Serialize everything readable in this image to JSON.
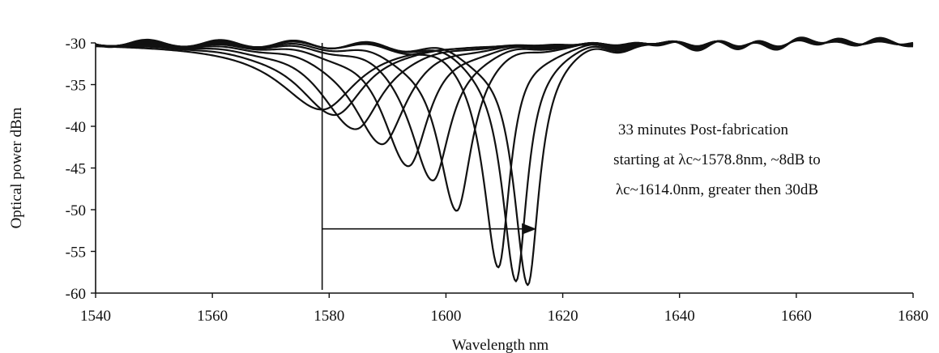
{
  "chart_data": {
    "type": "line",
    "title": "",
    "xlabel": "Wavelength nm",
    "ylabel": "Optical power dBm",
    "xlim": [
      1540,
      1680
    ],
    "ylim": [
      -60,
      -30
    ],
    "xticks": [
      1540,
      1560,
      1580,
      1600,
      1620,
      1640,
      1660,
      1680
    ],
    "yticks": [
      -30,
      -35,
      -40,
      -45,
      -50,
      -55,
      -60
    ],
    "grid": false,
    "legend": "none",
    "series": [
      {
        "dip_center": 1578.8,
        "dip_min": -38.0,
        "width": 9.0
      },
      {
        "dip_center": 1581.0,
        "dip_min": -38.6,
        "width": 8.0
      },
      {
        "dip_center": 1584.6,
        "dip_min": -40.4,
        "width": 7.0
      },
      {
        "dip_center": 1589.0,
        "dip_min": -42.2,
        "width": 6.2
      },
      {
        "dip_center": 1593.6,
        "dip_min": -44.6,
        "width": 5.4
      },
      {
        "dip_center": 1597.8,
        "dip_min": -46.7,
        "width": 4.7
      },
      {
        "dip_center": 1601.8,
        "dip_min": -50.2,
        "width": 4.0
      },
      {
        "dip_center": 1609.0,
        "dip_min": -57.0,
        "width": 3.1
      },
      {
        "dip_center": 1612.0,
        "dip_min": -59.0,
        "width": 3.0
      },
      {
        "dip_center": 1614.0,
        "dip_min": -59.2,
        "width": 3.0
      }
    ],
    "annotation": {
      "lines": [
        "33 minutes Post-fabrication",
        "starting at λc~1578.8nm, ~8dB to",
        "λc~1614.0nm, greater then 30dB"
      ],
      "vertical_marker_x": 1578.8,
      "arrow_from_x": 1578.8,
      "arrow_to_x": 1615.5,
      "arrow_y": -52.3
    }
  }
}
